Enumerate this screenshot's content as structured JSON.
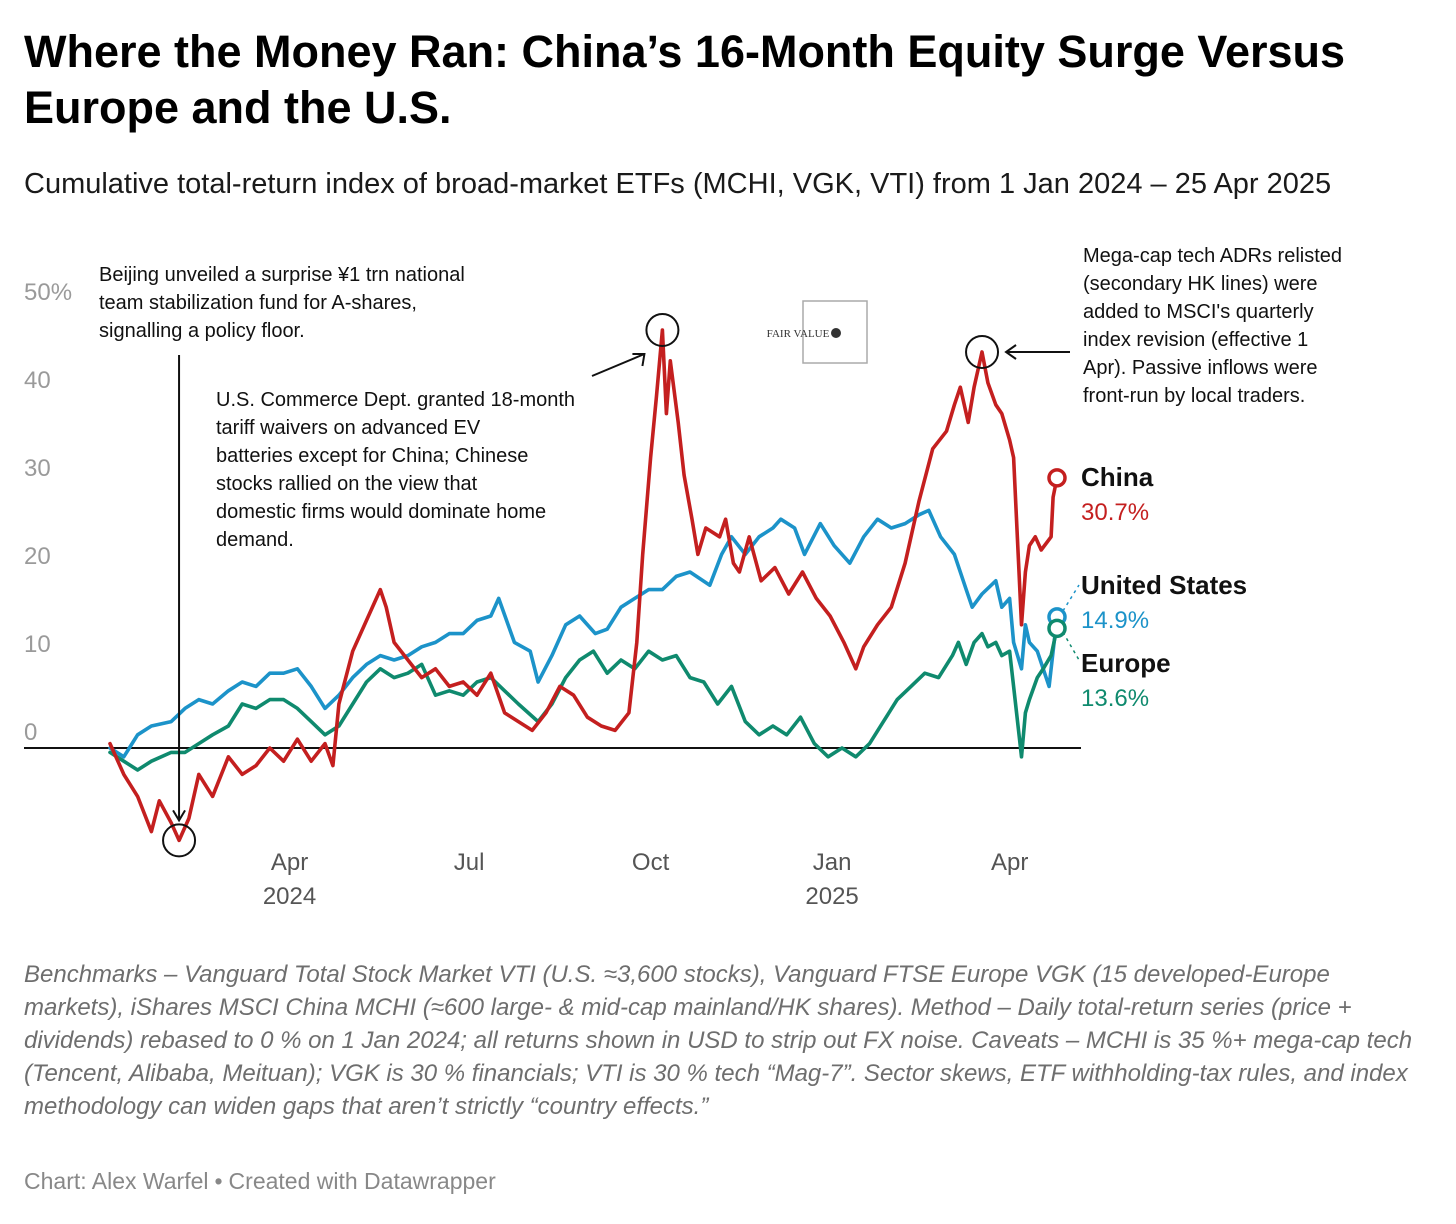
{
  "title": "Where the Money Ran: China’s 16-Month Equity Surge Versus Europe and the U.S.",
  "subtitle": "Cumulative total-return index of broad-market ETFs (MCHI, VGK, VTI) from 1 Jan 2024 – 25 Apr 2025",
  "notes": "Benchmarks – Vanguard Total Stock Market VTI (U.S. ≈3,600 stocks), Vanguard FTSE Europe VGK (15 developed-Europe markets), iShares MSCI China MCHI (≈600 large- & mid-cap mainland/HK shares). Method – Daily total-return series (price + dividends) rebased to 0 % on 1 Jan 2024; all returns shown in USD to strip out FX noise. Caveats – MCHI is 35 %+ mega-cap tech (Tencent, Alibaba, Meituan); VGK is 30 % financials; VTI is 30 % tech “Mag-7”. Sector skews, ETF withholding-tax rules, and index methodology can widen gaps that aren’t strictly “country effects.”",
  "credit": {
    "author": "Chart: Alex Warfel",
    "separator": "•",
    "tool": "Created with Datawrapper"
  },
  "watermark": "FAIR VALUE",
  "chart_data": {
    "type": "line",
    "x_range": [
      "2024-01-01",
      "2025-04-25"
    ],
    "ylim": [
      -12,
      51
    ],
    "y_ticks": [
      {
        "value": 0,
        "label": "0"
      },
      {
        "value": 10,
        "label": "10"
      },
      {
        "value": 20,
        "label": "20"
      },
      {
        "value": 30,
        "label": "30"
      },
      {
        "value": 40,
        "label": "40"
      },
      {
        "value": 50,
        "label": "50%"
      }
    ],
    "x_ticks": [
      {
        "date": "2024-04-01",
        "label": "Apr",
        "sublabel": "2024"
      },
      {
        "date": "2024-07-01",
        "label": "Jul",
        "sublabel": ""
      },
      {
        "date": "2024-10-01",
        "label": "Oct",
        "sublabel": ""
      },
      {
        "date": "2025-01-01",
        "label": "Jan",
        "sublabel": "2025"
      },
      {
        "date": "2025-04-01",
        "label": "Apr",
        "sublabel": ""
      }
    ],
    "grid": false,
    "baseline": 0,
    "colors": {
      "China": "#c41f1f",
      "United States": "#1c93c9",
      "Europe": "#0f8a6e"
    },
    "series": [
      {
        "name": "China",
        "end_label": "30.7%",
        "color": "#c41f1f",
        "points": [
          [
            "2024-01-01",
            0.5
          ],
          [
            "2024-01-08",
            -3
          ],
          [
            "2024-01-15",
            -5.5
          ],
          [
            "2024-01-22",
            -9.5
          ],
          [
            "2024-01-26",
            -6
          ],
          [
            "2024-02-01",
            -8.5
          ],
          [
            "2024-02-05",
            -10.5
          ],
          [
            "2024-02-10",
            -8
          ],
          [
            "2024-02-15",
            -3
          ],
          [
            "2024-02-22",
            -5.5
          ],
          [
            "2024-03-01",
            -1
          ],
          [
            "2024-03-08",
            -3
          ],
          [
            "2024-03-15",
            -2
          ],
          [
            "2024-03-22",
            0
          ],
          [
            "2024-03-29",
            -1.5
          ],
          [
            "2024-04-05",
            1
          ],
          [
            "2024-04-12",
            -1.5
          ],
          [
            "2024-04-19",
            0.5
          ],
          [
            "2024-04-23",
            -2
          ],
          [
            "2024-04-26",
            5
          ],
          [
            "2024-05-03",
            11
          ],
          [
            "2024-05-10",
            14.5
          ],
          [
            "2024-05-17",
            18
          ],
          [
            "2024-05-20",
            16
          ],
          [
            "2024-05-24",
            12
          ],
          [
            "2024-05-31",
            10
          ],
          [
            "2024-06-07",
            8
          ],
          [
            "2024-06-14",
            9
          ],
          [
            "2024-06-21",
            7
          ],
          [
            "2024-06-28",
            7.5
          ],
          [
            "2024-07-05",
            6
          ],
          [
            "2024-07-12",
            8.5
          ],
          [
            "2024-07-19",
            4
          ],
          [
            "2024-07-26",
            3
          ],
          [
            "2024-08-02",
            2
          ],
          [
            "2024-08-09",
            4
          ],
          [
            "2024-08-16",
            7
          ],
          [
            "2024-08-23",
            6
          ],
          [
            "2024-08-30",
            3.5
          ],
          [
            "2024-09-06",
            2.5
          ],
          [
            "2024-09-13",
            2
          ],
          [
            "2024-09-20",
            4
          ],
          [
            "2024-09-24",
            12
          ],
          [
            "2024-09-27",
            22
          ],
          [
            "2024-10-01",
            33
          ],
          [
            "2024-10-04",
            40
          ],
          [
            "2024-10-07",
            47.5
          ],
          [
            "2024-10-09",
            38
          ],
          [
            "2024-10-11",
            44
          ],
          [
            "2024-10-15",
            37
          ],
          [
            "2024-10-18",
            31
          ],
          [
            "2024-10-22",
            26
          ],
          [
            "2024-10-25",
            22
          ],
          [
            "2024-10-29",
            25
          ],
          [
            "2024-11-05",
            24
          ],
          [
            "2024-11-08",
            26
          ],
          [
            "2024-11-12",
            21
          ],
          [
            "2024-11-15",
            20
          ],
          [
            "2024-11-20",
            24
          ],
          [
            "2024-11-26",
            19
          ],
          [
            "2024-12-03",
            20.5
          ],
          [
            "2024-12-10",
            17.5
          ],
          [
            "2024-12-17",
            20
          ],
          [
            "2024-12-24",
            17
          ],
          [
            "2024-12-31",
            15
          ],
          [
            "2025-01-07",
            12
          ],
          [
            "2025-01-13",
            9
          ],
          [
            "2025-01-17",
            11.5
          ],
          [
            "2025-01-24",
            14
          ],
          [
            "2025-01-31",
            16
          ],
          [
            "2025-02-07",
            21
          ],
          [
            "2025-02-14",
            28
          ],
          [
            "2025-02-21",
            34
          ],
          [
            "2025-02-28",
            36
          ],
          [
            "2025-03-04",
            39
          ],
          [
            "2025-03-07",
            41
          ],
          [
            "2025-03-11",
            37
          ],
          [
            "2025-03-14",
            41
          ],
          [
            "2025-03-18",
            45
          ],
          [
            "2025-03-21",
            41.5
          ],
          [
            "2025-03-25",
            39
          ],
          [
            "2025-03-28",
            38
          ],
          [
            "2025-04-01",
            35
          ],
          [
            "2025-04-03",
            33
          ],
          [
            "2025-04-07",
            14
          ],
          [
            "2025-04-09",
            20
          ],
          [
            "2025-04-11",
            23
          ],
          [
            "2025-04-14",
            24
          ],
          [
            "2025-04-17",
            22.5
          ],
          [
            "2025-04-22",
            24
          ],
          [
            "2025-04-23",
            28.5
          ],
          [
            "2025-04-25",
            30.7
          ]
        ]
      },
      {
        "name": "United States",
        "end_label": "14.9%",
        "color": "#1c93c9",
        "points": [
          [
            "2024-01-01",
            0
          ],
          [
            "2024-01-08",
            -1
          ],
          [
            "2024-01-15",
            1.5
          ],
          [
            "2024-01-22",
            2.5
          ],
          [
            "2024-02-01",
            3
          ],
          [
            "2024-02-08",
            4.5
          ],
          [
            "2024-02-15",
            5.5
          ],
          [
            "2024-02-22",
            5
          ],
          [
            "2024-03-01",
            6.5
          ],
          [
            "2024-03-08",
            7.5
          ],
          [
            "2024-03-15",
            7
          ],
          [
            "2024-03-22",
            8.5
          ],
          [
            "2024-03-29",
            8.5
          ],
          [
            "2024-04-05",
            9
          ],
          [
            "2024-04-12",
            7
          ],
          [
            "2024-04-19",
            4.5
          ],
          [
            "2024-04-26",
            6
          ],
          [
            "2024-05-03",
            8
          ],
          [
            "2024-05-10",
            9.5
          ],
          [
            "2024-05-17",
            10.5
          ],
          [
            "2024-05-24",
            10
          ],
          [
            "2024-05-31",
            10.5
          ],
          [
            "2024-06-07",
            11.5
          ],
          [
            "2024-06-14",
            12
          ],
          [
            "2024-06-21",
            13
          ],
          [
            "2024-06-28",
            13
          ],
          [
            "2024-07-05",
            14.5
          ],
          [
            "2024-07-12",
            15
          ],
          [
            "2024-07-16",
            17
          ],
          [
            "2024-07-24",
            12
          ],
          [
            "2024-08-01",
            11
          ],
          [
            "2024-08-05",
            7.5
          ],
          [
            "2024-08-12",
            10.5
          ],
          [
            "2024-08-19",
            14
          ],
          [
            "2024-08-26",
            15
          ],
          [
            "2024-09-03",
            13
          ],
          [
            "2024-09-09",
            13.5
          ],
          [
            "2024-09-16",
            16
          ],
          [
            "2024-09-23",
            17
          ],
          [
            "2024-09-30",
            18
          ],
          [
            "2024-10-07",
            18
          ],
          [
            "2024-10-14",
            19.5
          ],
          [
            "2024-10-21",
            20
          ],
          [
            "2024-10-31",
            18.5
          ],
          [
            "2024-11-06",
            22
          ],
          [
            "2024-11-11",
            24
          ],
          [
            "2024-11-18",
            22
          ],
          [
            "2024-11-25",
            24
          ],
          [
            "2024-12-02",
            25
          ],
          [
            "2024-12-06",
            26
          ],
          [
            "2024-12-13",
            25
          ],
          [
            "2024-12-18",
            22
          ],
          [
            "2024-12-26",
            25.5
          ],
          [
            "2025-01-02",
            23
          ],
          [
            "2025-01-10",
            21
          ],
          [
            "2025-01-17",
            24
          ],
          [
            "2025-01-24",
            26
          ],
          [
            "2025-01-31",
            25
          ],
          [
            "2025-02-07",
            25.5
          ],
          [
            "2025-02-14",
            26.5
          ],
          [
            "2025-02-19",
            27
          ],
          [
            "2025-02-25",
            24
          ],
          [
            "2025-03-04",
            22
          ],
          [
            "2025-03-10",
            18
          ],
          [
            "2025-03-13",
            16
          ],
          [
            "2025-03-18",
            17.5
          ],
          [
            "2025-03-25",
            19
          ],
          [
            "2025-03-28",
            16
          ],
          [
            "2025-04-01",
            17
          ],
          [
            "2025-04-03",
            12
          ],
          [
            "2025-04-07",
            9
          ],
          [
            "2025-04-09",
            14
          ],
          [
            "2025-04-11",
            12
          ],
          [
            "2025-04-15",
            11
          ],
          [
            "2025-04-21",
            7
          ],
          [
            "2025-04-25",
            14.9
          ]
        ]
      },
      {
        "name": "Europe",
        "end_label": "13.6%",
        "color": "#0f8a6e",
        "points": [
          [
            "2024-01-01",
            -0.5
          ],
          [
            "2024-01-08",
            -1.5
          ],
          [
            "2024-01-15",
            -2.5
          ],
          [
            "2024-01-22",
            -1.5
          ],
          [
            "2024-02-01",
            -0.5
          ],
          [
            "2024-02-08",
            -0.5
          ],
          [
            "2024-02-15",
            0.5
          ],
          [
            "2024-02-22",
            1.5
          ],
          [
            "2024-03-01",
            2.5
          ],
          [
            "2024-03-08",
            5
          ],
          [
            "2024-03-15",
            4.5
          ],
          [
            "2024-03-22",
            5.5
          ],
          [
            "2024-03-29",
            5.5
          ],
          [
            "2024-04-05",
            4.5
          ],
          [
            "2024-04-12",
            3
          ],
          [
            "2024-04-19",
            1.5
          ],
          [
            "2024-04-26",
            2.5
          ],
          [
            "2024-05-03",
            5
          ],
          [
            "2024-05-10",
            7.5
          ],
          [
            "2024-05-17",
            9
          ],
          [
            "2024-05-24",
            8
          ],
          [
            "2024-05-31",
            8.5
          ],
          [
            "2024-06-07",
            9.5
          ],
          [
            "2024-06-14",
            6
          ],
          [
            "2024-06-21",
            6.5
          ],
          [
            "2024-06-28",
            6
          ],
          [
            "2024-07-05",
            7.5
          ],
          [
            "2024-07-12",
            8
          ],
          [
            "2024-07-19",
            6.5
          ],
          [
            "2024-07-26",
            5
          ],
          [
            "2024-08-05",
            3
          ],
          [
            "2024-08-12",
            5
          ],
          [
            "2024-08-19",
            8
          ],
          [
            "2024-08-26",
            10
          ],
          [
            "2024-09-02",
            11
          ],
          [
            "2024-09-09",
            8.5
          ],
          [
            "2024-09-16",
            10
          ],
          [
            "2024-09-23",
            9
          ],
          [
            "2024-09-30",
            11
          ],
          [
            "2024-10-07",
            10
          ],
          [
            "2024-10-14",
            10.5
          ],
          [
            "2024-10-21",
            8
          ],
          [
            "2024-10-28",
            7.5
          ],
          [
            "2024-11-04",
            5
          ],
          [
            "2024-11-11",
            7
          ],
          [
            "2024-11-18",
            3
          ],
          [
            "2024-11-25",
            1.5
          ],
          [
            "2024-12-02",
            2.5
          ],
          [
            "2024-12-09",
            1.5
          ],
          [
            "2024-12-16",
            3.5
          ],
          [
            "2024-12-23",
            0.5
          ],
          [
            "2024-12-30",
            -1
          ],
          [
            "2025-01-06",
            0
          ],
          [
            "2025-01-13",
            -1
          ],
          [
            "2025-01-20",
            0.5
          ],
          [
            "2025-01-27",
            3
          ],
          [
            "2025-02-03",
            5.5
          ],
          [
            "2025-02-10",
            7
          ],
          [
            "2025-02-17",
            8.5
          ],
          [
            "2025-02-24",
            8
          ],
          [
            "2025-03-03",
            10.5
          ],
          [
            "2025-03-06",
            12
          ],
          [
            "2025-03-10",
            9.5
          ],
          [
            "2025-03-14",
            12
          ],
          [
            "2025-03-18",
            13
          ],
          [
            "2025-03-21",
            11.5
          ],
          [
            "2025-03-25",
            12
          ],
          [
            "2025-03-28",
            10.5
          ],
          [
            "2025-04-01",
            11
          ],
          [
            "2025-04-03",
            7
          ],
          [
            "2025-04-07",
            -1
          ],
          [
            "2025-04-09",
            4
          ],
          [
            "2025-04-11",
            5.5
          ],
          [
            "2025-04-15",
            8
          ],
          [
            "2025-04-18",
            9
          ],
          [
            "2025-04-22",
            10.5
          ],
          [
            "2025-04-25",
            13.6
          ]
        ]
      }
    ],
    "annotations": [
      {
        "id": "stabilization-fund",
        "target": "China",
        "date": "2024-02-05",
        "text": "Beijing unveiled a surprise ¥1 trn national team stabilization fund for A-shares, signalling a policy floor."
      },
      {
        "id": "tariff-waivers",
        "target": "China",
        "date": "2024-10-07",
        "text": "U.S. Commerce Dept. granted 18-month tariff waivers on advanced EV batteries except for China; Chinese stocks rallied on the view that domestic firms would dominate home demand."
      },
      {
        "id": "msci-revision",
        "target": "China",
        "date": "2025-03-18",
        "text": "Mega-cap tech ADRs relisted (secondary HK lines) were added to MSCI's quarterly index revision (effective 1 Apr). Passive inflows were front-run by local traders."
      }
    ]
  }
}
